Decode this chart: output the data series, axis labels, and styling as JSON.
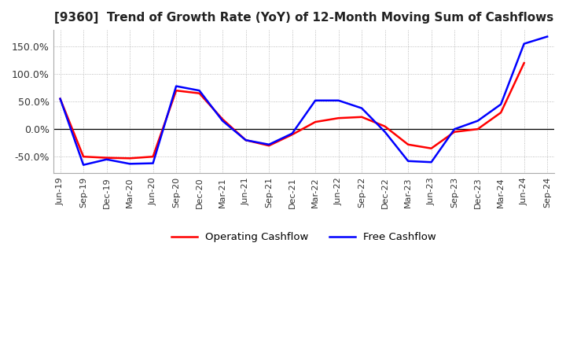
{
  "title": "[9360]  Trend of Growth Rate (YoY) of 12-Month Moving Sum of Cashflows",
  "title_fontsize": 11,
  "ylim": [
    -80,
    180
  ],
  "yticks": [
    -50,
    0,
    50,
    100,
    150
  ],
  "ytick_labels": [
    "-50.0%",
    "0.0%",
    "50.0%",
    "100.0%",
    "150.0%"
  ],
  "background_color": "#ffffff",
  "grid_color": "#aaaaaa",
  "legend_labels": [
    "Operating Cashflow",
    "Free Cashflow"
  ],
  "line_colors": [
    "#ff0000",
    "#0000ff"
  ],
  "x_labels": [
    "Jun-19",
    "Sep-19",
    "Dec-19",
    "Mar-20",
    "Jun-20",
    "Sep-20",
    "Dec-20",
    "Mar-21",
    "Jun-21",
    "Sep-21",
    "Dec-21",
    "Mar-22",
    "Jun-22",
    "Sep-22",
    "Dec-22",
    "Mar-23",
    "Jun-23",
    "Sep-23",
    "Dec-23",
    "Mar-24",
    "Jun-24",
    "Sep-24"
  ],
  "operating_cashflow": [
    55.0,
    -50.0,
    -52.0,
    -53.0,
    -50.0,
    70.0,
    65.0,
    18.0,
    -20.0,
    -30.0,
    -10.0,
    13.0,
    20.0,
    22.0,
    5.0,
    -28.0,
    -35.0,
    -5.0,
    0.0,
    30.0,
    120.0,
    null
  ],
  "free_cashflow": [
    55.0,
    -65.0,
    -55.0,
    -63.0,
    -62.0,
    78.0,
    70.0,
    15.0,
    -20.0,
    -28.0,
    -8.0,
    52.0,
    52.0,
    38.0,
    -5.0,
    -58.0,
    -60.0,
    0.0,
    15.0,
    45.0,
    155.0,
    168.0
  ]
}
